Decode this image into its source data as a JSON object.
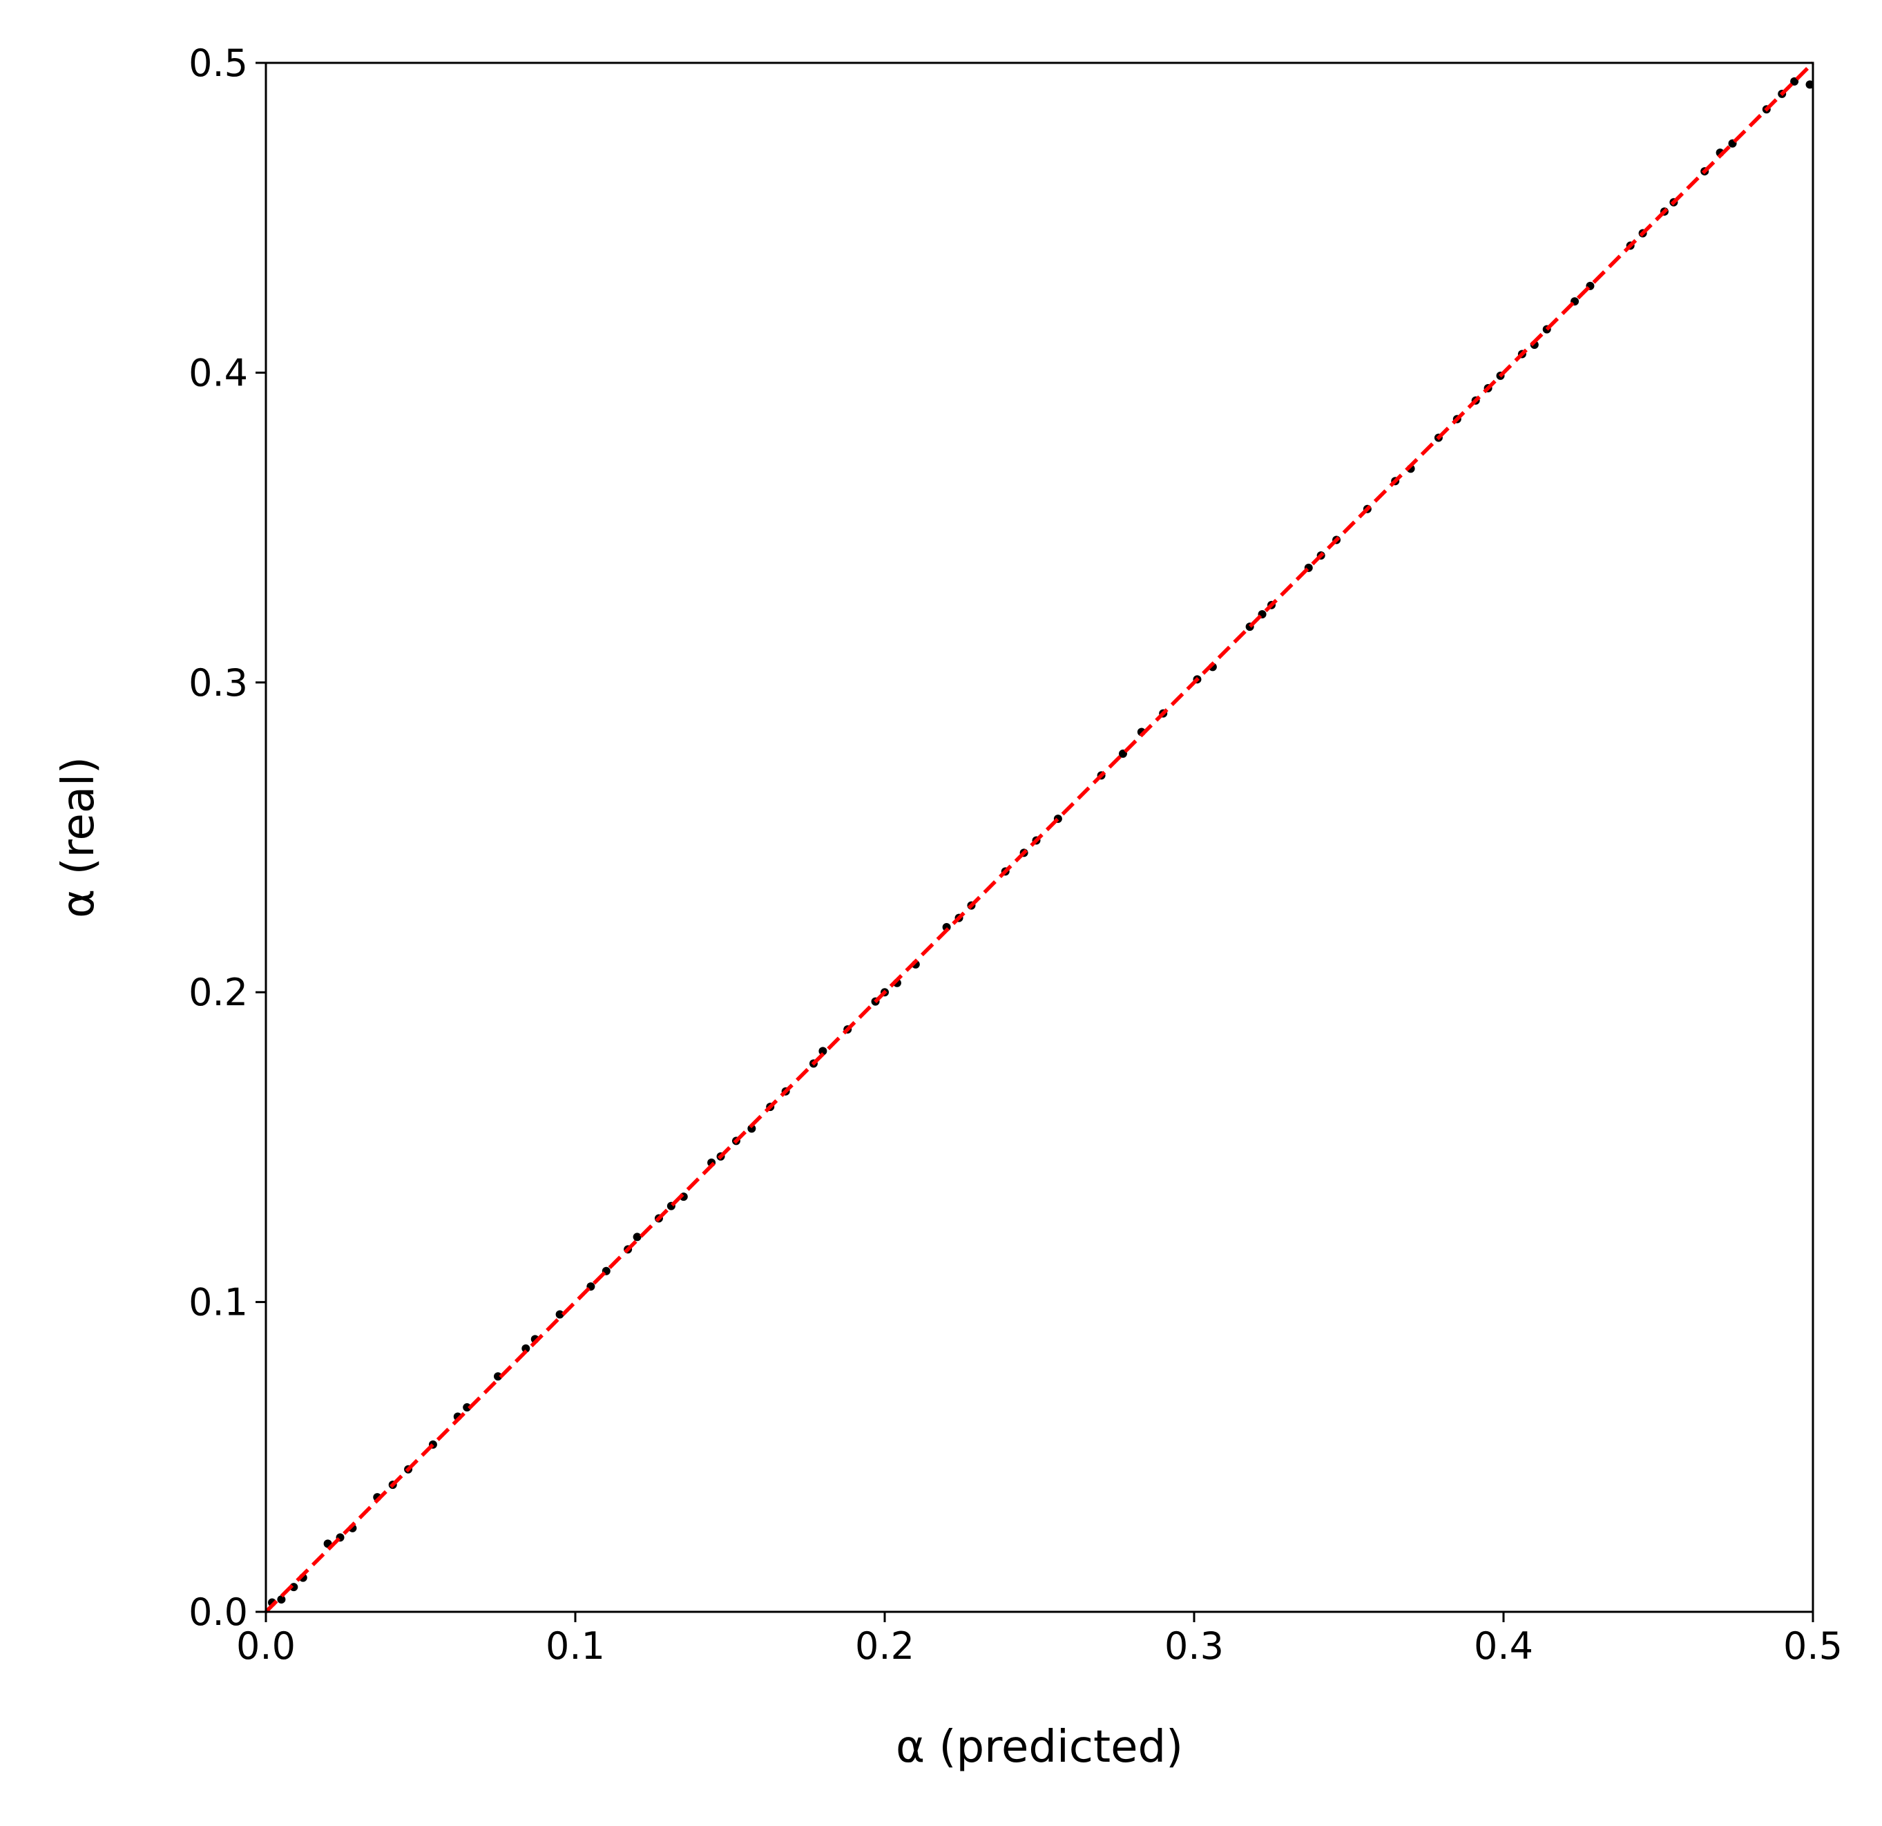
{
  "chart_data": {
    "type": "scatter",
    "x_label": "α (predicted)",
    "y_label": "α (real)",
    "xlim": [
      0,
      0.5
    ],
    "ylim": [
      0,
      0.5
    ],
    "xticks": [
      {
        "value": 0,
        "label": "0.0"
      },
      0.1,
      0.2,
      0.3,
      0.4,
      0.5
    ],
    "yticks": [
      {
        "value": 0,
        "label": "0.0"
      },
      0.1,
      0.2,
      0.3,
      0.4,
      0.5
    ],
    "grid": false,
    "series": [
      {
        "color": "#000000",
        "x": [
          0.002,
          0.005,
          0.009,
          0.012,
          0.02,
          0.024,
          0.028,
          0.036,
          0.041,
          0.046,
          0.054,
          0.062,
          0.065,
          0.075,
          0.084,
          0.087,
          0.095,
          0.105,
          0.11,
          0.117,
          0.12,
          0.127,
          0.131,
          0.135,
          0.144,
          0.147,
          0.152,
          0.157,
          0.163,
          0.168,
          0.177,
          0.18,
          0.188,
          0.197,
          0.2,
          0.204,
          0.21,
          0.22,
          0.224,
          0.228,
          0.239,
          0.245,
          0.249,
          0.256,
          0.27,
          0.277,
          0.283,
          0.29,
          0.301,
          0.306,
          0.318,
          0.322,
          0.325,
          0.337,
          0.341,
          0.346,
          0.356,
          0.365,
          0.37,
          0.379,
          0.385,
          0.391,
          0.395,
          0.399,
          0.406,
          0.41,
          0.414,
          0.423,
          0.428,
          0.441,
          0.445,
          0.452,
          0.455,
          0.465,
          0.47,
          0.474,
          0.485,
          0.49,
          0.494,
          0.499
        ],
        "values": [
          0.003,
          0.004,
          0.008,
          0.011,
          0.022,
          0.024,
          0.027,
          0.037,
          0.041,
          0.046,
          0.054,
          0.063,
          0.066,
          0.076,
          0.085,
          0.088,
          0.096,
          0.105,
          0.11,
          0.117,
          0.121,
          0.127,
          0.131,
          0.134,
          0.145,
          0.147,
          0.152,
          0.156,
          0.163,
          0.168,
          0.177,
          0.181,
          0.188,
          0.197,
          0.2,
          0.203,
          0.209,
          0.221,
          0.224,
          0.228,
          0.239,
          0.245,
          0.249,
          0.256,
          0.27,
          0.277,
          0.284,
          0.29,
          0.301,
          0.305,
          0.318,
          0.322,
          0.325,
          0.337,
          0.341,
          0.346,
          0.356,
          0.365,
          0.369,
          0.379,
          0.385,
          0.391,
          0.395,
          0.399,
          0.406,
          0.409,
          0.414,
          0.423,
          0.428,
          0.441,
          0.445,
          0.452,
          0.455,
          0.465,
          0.471,
          0.474,
          0.485,
          0.49,
          0.494,
          0.493
        ]
      }
    ],
    "reference_line": {
      "x": [
        0,
        0.5
      ],
      "values": [
        0,
        0.5
      ],
      "color": "#ff0000",
      "dashed": true
    }
  }
}
